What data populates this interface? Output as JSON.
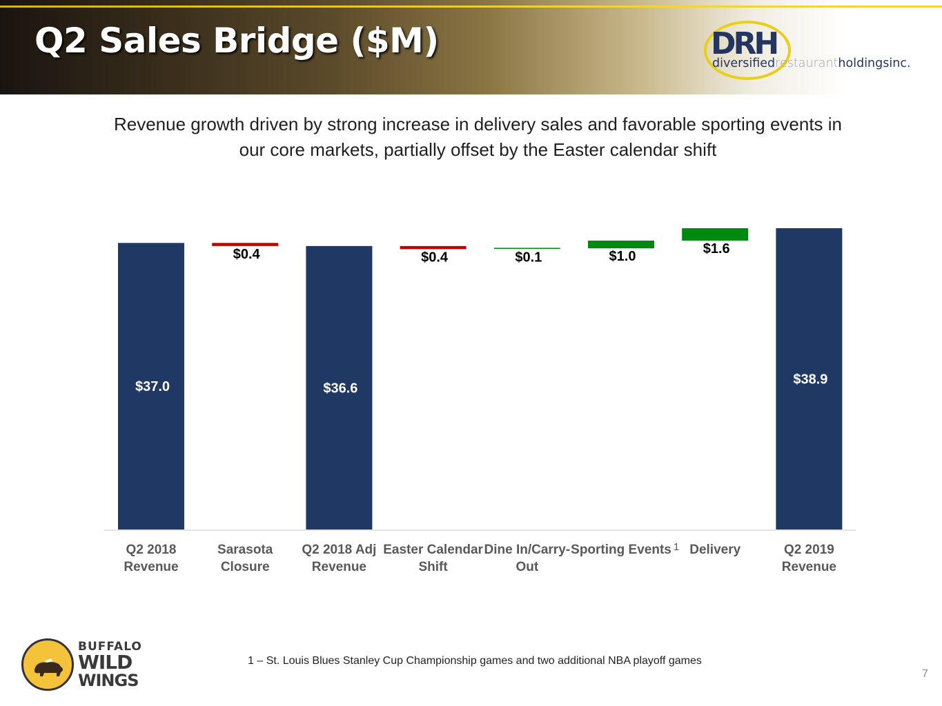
{
  "slide": {
    "title": "Q2 Sales Bridge ($M)",
    "subtitle_line1": "Revenue growth driven by strong increase in delivery sales and favorable sporting events in",
    "subtitle_line2": "our core markets, partially offset by the Easter calendar shift",
    "footnote": "1 – St. Louis Blues Stanley Cup Championship games and two additional NBA playoff games",
    "page_number": "7"
  },
  "logos": {
    "drh": {
      "word": "DRH",
      "sub_a": "diversified",
      "sub_b": "restaurant",
      "sub_c": "holdingsinc."
    },
    "bww": {
      "line1": "BUFFALO",
      "line2": "WILD",
      "line3": "WINGS"
    }
  },
  "colors": {
    "total": "#1f3864",
    "decrease": "#c00000",
    "increase": "#00890f",
    "axis": "#d9d9d9",
    "category_label": "#595959"
  },
  "chart_data": {
    "type": "bar",
    "subtype": "waterfall",
    "title": "Q2 Sales Bridge ($M)",
    "categories": [
      [
        "Q2 2018",
        "Revenue"
      ],
      [
        "Sarasota",
        "Closure"
      ],
      [
        "Q2 2018 Adj",
        "Revenue"
      ],
      [
        "Easter Calendar",
        "Shift"
      ],
      [
        "Dine In/Carry-",
        "Out"
      ],
      [
        "Sporting Events"
      ],
      [
        "Delivery"
      ],
      [
        "Q2 2019",
        "Revenue"
      ]
    ],
    "kind": [
      "total",
      "decrease",
      "total",
      "decrease",
      "increase",
      "increase",
      "increase",
      "total"
    ],
    "values": [
      37.0,
      -0.4,
      36.6,
      -0.4,
      0.1,
      1.0,
      1.6,
      38.9
    ],
    "data_labels": [
      "$37.0",
      "$0.4",
      "$36.6",
      "$0.4",
      "$0.1",
      "$1.0",
      "$1.6",
      "$38.9"
    ],
    "superscripts": [
      "",
      "",
      "",
      "",
      "",
      "1",
      "",
      ""
    ],
    "ylim": [
      0,
      38.9
    ],
    "xlabel": "",
    "ylabel": "",
    "grid": false,
    "legend": "none"
  }
}
